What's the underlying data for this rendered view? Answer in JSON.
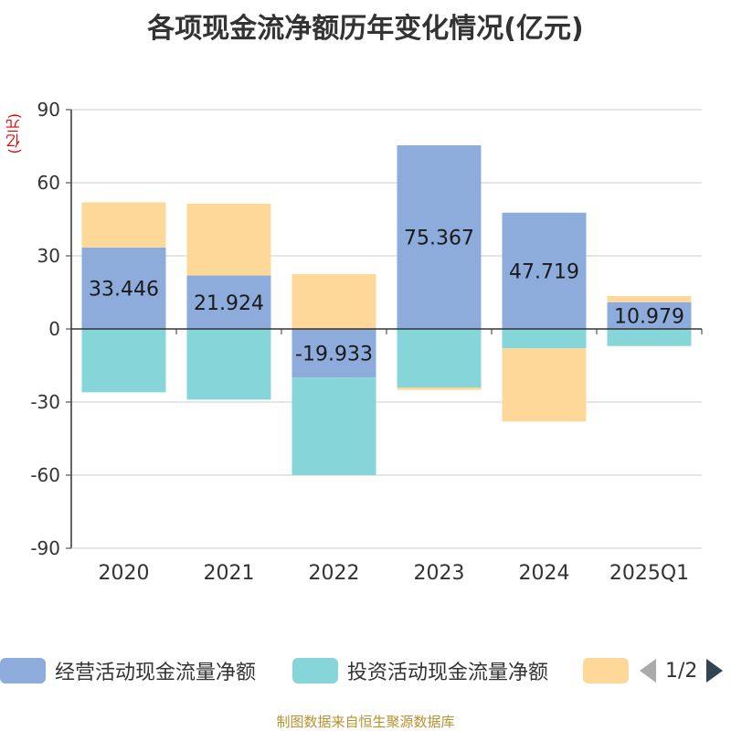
{
  "title": "各项现金流净额历年变化情况(亿元)",
  "source": "制图数据来自恒生聚源数据库",
  "legend": {
    "items": [
      {
        "label": "经营活动现金流量净额",
        "color": "#8eacdb"
      },
      {
        "label": "投资活动现金流量净额",
        "color": "#86d5d8"
      },
      {
        "label": "",
        "color": "#fed899"
      }
    ],
    "page": "1/2"
  },
  "chart_data": {
    "type": "bar",
    "stacked": true,
    "unit": "(亿元)",
    "categories": [
      "2020",
      "2021",
      "2022",
      "2023",
      "2024",
      "2025Q1"
    ],
    "ylim": [
      -90,
      90
    ],
    "yticks": [
      -90,
      -60,
      -30,
      0,
      30,
      60,
      90
    ],
    "grid": true,
    "legend_position": "bottom",
    "series": [
      {
        "name": "经营活动现金流量净额",
        "color": "#8eacdb",
        "values": [
          33.446,
          21.924,
          -19.933,
          75.367,
          47.719,
          10.979
        ],
        "show_labels": true
      },
      {
        "name": "投资活动现金流量净额",
        "color": "#86d5d8",
        "values": [
          -26,
          -29,
          -40,
          -24,
          -8,
          -7
        ],
        "show_labels": false
      },
      {
        "name": "",
        "color": "#fed899",
        "values": [
          18.5,
          29.5,
          22.5,
          -1,
          -30,
          2.5
        ],
        "show_labels": false
      }
    ]
  }
}
